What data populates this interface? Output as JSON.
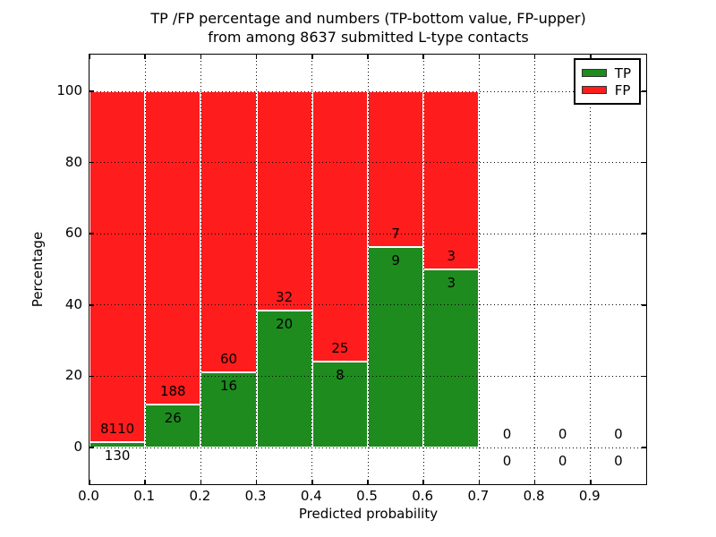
{
  "figure": {
    "title_line1": "TP /FP percentage and numbers (TP-bottom value, FP-upper)",
    "title_line2": "from among 8637 submitted L-type contacts"
  },
  "chart_data": {
    "type": "bar",
    "stacked": true,
    "title": "TP /FP percentage and numbers (TP-bottom value, FP-upper) from among 8637 submitted L-type contacts",
    "xlabel": "Predicted probability",
    "ylabel": "Percentage",
    "bin_width": 0.1,
    "bin_starts": [
      0.0,
      0.1,
      0.2,
      0.3,
      0.4,
      0.5,
      0.6,
      0.7,
      0.8,
      0.9
    ],
    "series": [
      {
        "name": "TP",
        "color": "#1e8b1e",
        "counts": [
          130,
          26,
          16,
          20,
          8,
          9,
          3,
          0,
          0,
          0
        ]
      },
      {
        "name": "FP",
        "color": "#ff1c1c",
        "counts": [
          8110,
          188,
          60,
          32,
          25,
          7,
          3,
          0,
          0,
          0
        ]
      }
    ],
    "tp_percent_heights": [
      1.58,
      12.15,
      21.05,
      38.46,
      24.24,
      56.25,
      50.0,
      0,
      0,
      0
    ],
    "bar_total_percent": 100,
    "label_note": "TP count printed below TP/FP boundary, FP count printed above it; empty bins show 0 / 0 at the zero line",
    "xticks": [
      "0.0",
      "0.1",
      "0.2",
      "0.3",
      "0.4",
      "0.5",
      "0.6",
      "0.7",
      "0.8",
      "0.9"
    ],
    "yticks": [
      "0",
      "20",
      "40",
      "60",
      "80",
      "100"
    ],
    "ytick_values": [
      0,
      20,
      40,
      60,
      80,
      100
    ],
    "xlim": [
      0.0,
      1.0
    ],
    "ylim": [
      -11,
      110
    ],
    "grid": "dotted",
    "grid_color": "#000000",
    "bar_edge_color": "#ffffff",
    "legend": {
      "position": "upper-right",
      "entries": [
        {
          "label": "TP",
          "color": "#1e8b1e"
        },
        {
          "label": "FP",
          "color": "#ff1c1c"
        }
      ]
    }
  }
}
